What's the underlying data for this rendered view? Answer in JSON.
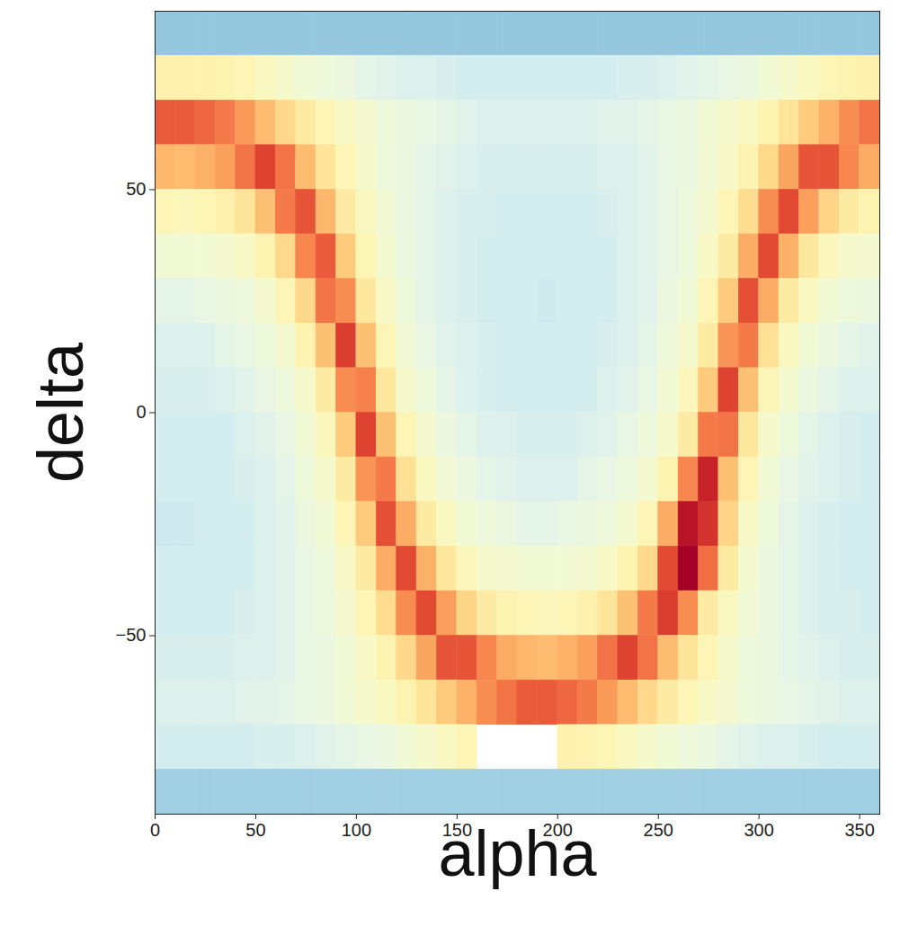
{
  "chart_data": {
    "type": "heatmap",
    "x_label": "alpha",
    "y_label": "delta",
    "xlim": [
      0,
      360
    ],
    "ylim": [
      -90,
      90
    ],
    "xticks": [
      0,
      50,
      100,
      150,
      200,
      250,
      300,
      350
    ],
    "yticks": [
      -50,
      0,
      50
    ],
    "xbins": [
      0,
      10,
      20,
      30,
      40,
      50,
      60,
      70,
      80,
      90,
      100,
      110,
      120,
      130,
      140,
      150,
      160,
      170,
      180,
      190,
      200,
      210,
      220,
      230,
      240,
      250,
      260,
      270,
      280,
      290,
      300,
      310,
      320,
      330,
      340,
      350,
      360
    ],
    "ybins": [
      90,
      80,
      70,
      60,
      50,
      40,
      30,
      20,
      10,
      0,
      -10,
      -20,
      -30,
      -40,
      -50,
      -60,
      -70,
      -80,
      -90
    ],
    "color_range": [
      0,
      10
    ],
    "cells": [
      [
        2.6,
        2.6,
        2.6,
        2.6,
        2.6,
        2.6,
        2.6,
        2.6,
        2.6,
        2.6,
        2.6,
        2.6,
        2.6,
        2.6,
        2.6,
        2.6,
        2.6,
        2.6,
        2.6,
        2.6,
        2.6,
        2.6,
        2.6,
        2.6,
        2.6,
        2.6,
        2.6,
        2.6,
        2.6,
        2.6,
        2.6,
        2.6,
        2.6,
        2.6,
        2.6,
        2.6
      ],
      [
        5.4,
        5.4,
        5.4,
        5.3,
        5.2,
        5.0,
        4.8,
        4.6,
        4.5,
        4.4,
        4.2,
        4.1,
        4.0,
        4.0,
        3.9,
        3.8,
        3.8,
        3.8,
        3.8,
        3.8,
        3.8,
        3.8,
        3.8,
        3.9,
        3.9,
        4.0,
        4.1,
        4.2,
        4.3,
        4.4,
        4.6,
        4.8,
        5.0,
        5.2,
        5.3,
        5.4
      ],
      [
        8.3,
        8.3,
        8.1,
        7.8,
        7.3,
        6.7,
        6.1,
        5.6,
        5.2,
        4.9,
        4.7,
        4.5,
        4.4,
        4.3,
        4.2,
        4.1,
        4.0,
        4.0,
        4.0,
        4.0,
        4.0,
        4.0,
        4.1,
        4.1,
        4.2,
        4.3,
        4.4,
        4.6,
        4.8,
        5.0,
        5.3,
        5.8,
        6.4,
        6.9,
        7.5,
        7.9
      ],
      [
        6.8,
        6.7,
        6.9,
        7.2,
        7.9,
        8.7,
        7.9,
        6.7,
        5.8,
        5.2,
        4.8,
        4.5,
        4.4,
        4.2,
        4.1,
        4.0,
        3.9,
        3.9,
        3.9,
        3.9,
        3.9,
        3.9,
        4.0,
        4.0,
        4.1,
        4.3,
        4.4,
        4.6,
        4.9,
        5.3,
        6.1,
        7.1,
        8.4,
        8.4,
        7.6,
        7.0
      ],
      [
        5.2,
        5.1,
        5.2,
        5.4,
        5.8,
        6.6,
        7.8,
        8.4,
        6.8,
        5.6,
        5.0,
        4.6,
        4.4,
        4.2,
        4.0,
        3.9,
        3.9,
        3.8,
        3.8,
        3.8,
        3.8,
        3.8,
        3.9,
        4.0,
        4.1,
        4.3,
        4.5,
        4.7,
        5.2,
        6.0,
        7.5,
        8.6,
        7.2,
        6.2,
        5.6,
        5.3
      ],
      [
        4.6,
        4.6,
        4.6,
        4.7,
        4.9,
        5.3,
        6.1,
        7.6,
        8.3,
        6.4,
        5.2,
        4.7,
        4.4,
        4.2,
        4.0,
        3.9,
        3.8,
        3.8,
        3.8,
        3.8,
        3.8,
        3.8,
        3.8,
        4.0,
        4.1,
        4.3,
        4.5,
        4.9,
        5.6,
        7.0,
        8.6,
        6.9,
        5.7,
        5.1,
        4.8,
        4.7
      ],
      [
        4.2,
        4.2,
        4.3,
        4.4,
        4.5,
        4.7,
        5.2,
        6.1,
        7.9,
        7.5,
        5.7,
        4.9,
        4.5,
        4.2,
        4.0,
        3.9,
        3.8,
        3.8,
        3.8,
        3.7,
        3.8,
        3.8,
        3.8,
        4.0,
        4.1,
        4.4,
        4.6,
        5.2,
        6.4,
        8.5,
        7.0,
        5.6,
        5.0,
        4.6,
        4.5,
        4.4
      ],
      [
        4.0,
        4.0,
        4.0,
        4.2,
        4.3,
        4.5,
        4.7,
        5.3,
        6.6,
        8.8,
        6.6,
        5.2,
        4.6,
        4.3,
        4.1,
        4.0,
        3.9,
        3.8,
        3.8,
        3.8,
        3.8,
        3.8,
        3.9,
        4.0,
        4.2,
        4.5,
        4.8,
        5.6,
        7.4,
        7.8,
        5.9,
        5.0,
        4.6,
        4.4,
        4.2,
        4.1
      ],
      [
        3.9,
        3.9,
        3.9,
        4.0,
        4.1,
        4.3,
        4.5,
        4.8,
        5.6,
        7.5,
        7.7,
        5.7,
        4.8,
        4.5,
        4.2,
        4.0,
        3.9,
        3.8,
        3.8,
        3.8,
        3.8,
        3.8,
        4.0,
        4.1,
        4.3,
        4.6,
        5.1,
        6.4,
        8.7,
        6.6,
        5.2,
        4.7,
        4.4,
        4.2,
        4.0,
        4.0
      ],
      [
        3.8,
        3.8,
        3.8,
        3.8,
        4.0,
        4.1,
        4.3,
        4.6,
        5.1,
        6.4,
        8.7,
        6.6,
        5.2,
        4.7,
        4.4,
        4.2,
        4.0,
        4.0,
        3.9,
        3.9,
        3.9,
        4.0,
        4.1,
        4.3,
        4.5,
        4.8,
        5.6,
        7.8,
        7.9,
        5.7,
        4.8,
        4.5,
        4.2,
        4.0,
        3.9,
        3.8
      ],
      [
        3.8,
        3.8,
        3.8,
        3.8,
        3.9,
        4.0,
        4.2,
        4.5,
        4.8,
        5.6,
        7.4,
        7.8,
        5.9,
        5.0,
        4.6,
        4.4,
        4.2,
        4.1,
        4.0,
        4.0,
        4.0,
        4.2,
        4.3,
        4.5,
        4.7,
        5.3,
        7.6,
        9.3,
        6.6,
        5.2,
        4.6,
        4.3,
        4.1,
        4.0,
        3.9,
        3.8
      ],
      [
        3.7,
        3.7,
        3.8,
        3.8,
        3.8,
        4.0,
        4.1,
        4.4,
        4.6,
        5.2,
        6.4,
        8.5,
        7.0,
        5.6,
        5.0,
        4.6,
        4.5,
        4.4,
        4.2,
        4.2,
        4.3,
        4.4,
        4.5,
        4.7,
        5.2,
        7.0,
        9.6,
        9.0,
        6.2,
        4.9,
        4.5,
        4.2,
        4.0,
        3.9,
        3.8,
        3.8
      ],
      [
        3.8,
        3.8,
        3.8,
        3.8,
        3.8,
        4.0,
        4.1,
        4.3,
        4.5,
        4.9,
        5.6,
        7.0,
        8.6,
        6.9,
        5.7,
        5.1,
        4.8,
        4.7,
        4.6,
        4.6,
        4.6,
        4.7,
        4.9,
        5.3,
        6.1,
        8.6,
        10.0,
        8.0,
        5.6,
        4.7,
        4.4,
        4.2,
        4.0,
        3.9,
        3.8,
        3.8
      ],
      [
        3.8,
        3.8,
        3.8,
        3.8,
        3.9,
        4.0,
        4.1,
        4.3,
        4.5,
        4.7,
        5.2,
        6.0,
        7.5,
        8.6,
        7.2,
        6.2,
        5.6,
        5.3,
        5.2,
        5.1,
        5.2,
        5.4,
        5.8,
        6.6,
        7.8,
        8.8,
        7.5,
        5.6,
        5.0,
        4.6,
        4.4,
        4.2,
        4.0,
        3.9,
        3.9,
        3.8
      ],
      [
        3.9,
        3.9,
        3.9,
        3.9,
        4.0,
        4.0,
        4.1,
        4.3,
        4.4,
        4.6,
        4.9,
        5.3,
        6.1,
        7.1,
        8.4,
        8.4,
        7.6,
        7.0,
        6.8,
        6.7,
        6.9,
        7.2,
        7.9,
        8.7,
        7.9,
        6.7,
        5.8,
        5.2,
        4.8,
        4.5,
        4.4,
        4.2,
        4.1,
        4.0,
        3.9,
        3.9
      ],
      [
        4.0,
        4.0,
        4.0,
        4.0,
        4.1,
        4.1,
        4.2,
        4.3,
        4.4,
        4.6,
        4.8,
        5.0,
        5.3,
        5.8,
        6.4,
        6.9,
        7.5,
        7.9,
        8.3,
        8.3,
        8.1,
        7.8,
        7.3,
        6.7,
        6.1,
        5.6,
        5.2,
        4.9,
        4.7,
        4.5,
        4.4,
        4.3,
        4.2,
        4.1,
        4.0,
        4.0
      ],
      [
        3.8,
        3.8,
        3.8,
        3.8,
        3.8,
        3.9,
        3.9,
        4.0,
        4.1,
        4.2,
        4.3,
        4.4,
        4.6,
        4.8,
        5.0,
        5.2,
        null,
        null,
        null,
        null,
        5.4,
        5.3,
        5.2,
        5.0,
        4.8,
        4.6,
        4.5,
        4.4,
        4.2,
        4.1,
        4.0,
        4.0,
        3.9,
        3.8,
        3.8,
        3.8
      ],
      [
        2.8,
        2.8,
        2.8,
        2.8,
        2.8,
        2.8,
        2.8,
        2.8,
        2.8,
        2.8,
        2.8,
        2.8,
        2.8,
        2.8,
        2.8,
        2.8,
        2.8,
        2.8,
        2.8,
        2.8,
        2.8,
        2.8,
        2.8,
        2.8,
        2.8,
        2.8,
        2.8,
        2.8,
        2.8,
        2.8,
        2.8,
        2.8,
        2.8,
        2.8,
        2.8,
        2.8
      ]
    ]
  }
}
